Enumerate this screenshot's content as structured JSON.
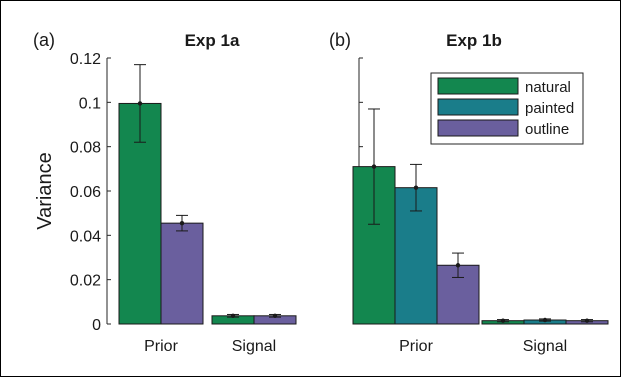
{
  "colors": {
    "natural": "#13874f",
    "painted": "#1a7d8a",
    "outline": "#6a5f9e",
    "axis": "#262626",
    "bar_edge": "#1a1a1a"
  },
  "chart_data": [
    {
      "type": "bar",
      "panel_label": "(a)",
      "title": "Exp 1a",
      "ylabel": "Variance",
      "ylim": [
        0,
        0.12
      ],
      "yticks": [
        0,
        0.02,
        0.04,
        0.06,
        0.08,
        0.1,
        0.12
      ],
      "ytick_labels": [
        "0",
        "0.02",
        "0.04",
        "0.06",
        "0.08",
        "0.1",
        "0.12"
      ],
      "categories": [
        "Prior",
        "Signal"
      ],
      "series": [
        {
          "key": "natural",
          "values": [
            0.0995,
            0.0037
          ],
          "err": [
            0.0175,
            0.0006
          ]
        },
        {
          "key": "outline",
          "values": [
            0.0455,
            0.0037
          ],
          "err": [
            0.0035,
            0.0006
          ]
        }
      ]
    },
    {
      "type": "bar",
      "panel_label": "(b)",
      "title": "Exp 1b",
      "ylim": [
        0,
        0.12
      ],
      "categories": [
        "Prior",
        "Signal"
      ],
      "legend": {
        "position": "top-right",
        "entries": [
          {
            "key": "natural",
            "name": "natural"
          },
          {
            "key": "painted",
            "name": "painted"
          },
          {
            "key": "outline",
            "name": "outline"
          }
        ]
      },
      "series": [
        {
          "key": "natural",
          "name": "natural",
          "values": [
            0.071,
            0.0015
          ],
          "err": [
            0.026,
            0.0005
          ]
        },
        {
          "key": "painted",
          "name": "painted",
          "values": [
            0.0615,
            0.0018
          ],
          "err": [
            0.0105,
            0.0005
          ]
        },
        {
          "key": "outline",
          "name": "outline",
          "values": [
            0.0265,
            0.0015
          ],
          "err": [
            0.0055,
            0.0005
          ]
        }
      ]
    }
  ]
}
